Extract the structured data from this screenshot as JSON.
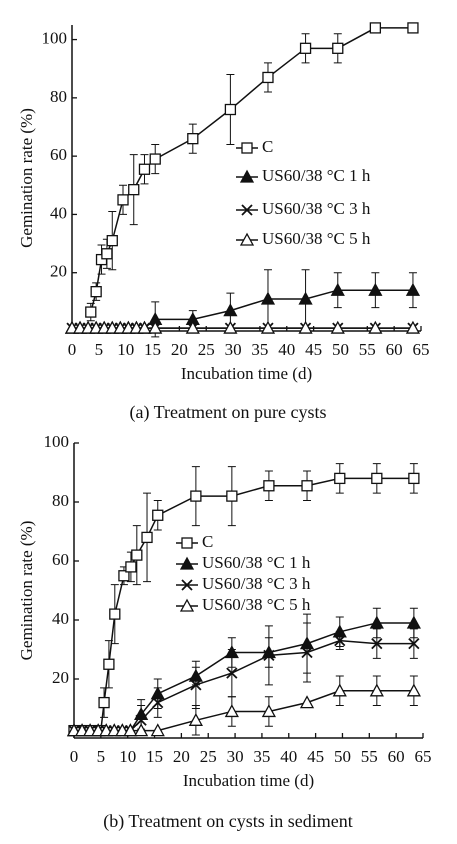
{
  "chart_data": [
    {
      "type": "line",
      "caption": "(a) Treatment on pure cysts",
      "x_label": "Incubation time (d)",
      "y_label": "Gemination rate (%)",
      "xlim": [
        0,
        65
      ],
      "xticks": [
        0,
        5,
        10,
        15,
        20,
        25,
        30,
        35,
        40,
        45,
        50,
        55,
        60,
        65
      ],
      "ylim": [
        0,
        105
      ],
      "yticks": [
        20,
        40,
        60,
        80,
        100
      ],
      "series": [
        {
          "name": "C",
          "color": "#111111",
          "marker": "square-open",
          "x": [
            3.5,
            4.5,
            5.5,
            6.5,
            7.5,
            9.5,
            11.5,
            13.5,
            15.5,
            22.5,
            29.5,
            36.5,
            43.5,
            49.5,
            56.5,
            63.5
          ],
          "values": [
            6.5,
            13.5,
            24.5,
            26.5,
            31,
            45,
            48.5,
            55.5,
            59,
            66,
            76,
            87,
            97,
            97,
            104,
            104
          ],
          "errors": [
            3,
            3,
            5,
            5,
            10,
            5,
            12,
            5,
            5,
            5,
            12,
            5,
            5,
            5,
            null,
            null
          ]
        },
        {
          "name": "US60/38 °C 1 h",
          "color": "#111111",
          "marker": "triangle-filled",
          "x": [
            0,
            1.5,
            3,
            4.5,
            6,
            7.5,
            9,
            10.5,
            12,
            13.5,
            15.5,
            22.5,
            29.5,
            36.5,
            43.5,
            49.5,
            56.5,
            63.5
          ],
          "values": [
            1,
            1,
            1,
            1,
            1,
            1,
            1,
            1,
            1,
            1,
            4,
            4,
            7,
            11,
            11,
            14,
            14,
            14
          ],
          "errors": [
            null,
            null,
            null,
            null,
            null,
            null,
            null,
            null,
            null,
            null,
            6,
            3,
            6,
            10,
            10,
            6,
            6,
            6
          ]
        },
        {
          "name": "US60/38 °C 3 h",
          "color": "#111111",
          "marker": "x",
          "x": [
            0,
            1.5,
            3,
            4.5,
            6,
            7.5,
            9,
            10.5,
            12,
            13.5,
            15.5,
            22.5,
            29.5,
            36.5,
            43.5,
            49.5,
            56.5,
            63.5
          ],
          "values": [
            1,
            1,
            1,
            1,
            1,
            1,
            1,
            1,
            1,
            1,
            1,
            1,
            1,
            1,
            1,
            1,
            1,
            1
          ],
          "errors": [
            null,
            null,
            null,
            null,
            null,
            null,
            null,
            null,
            null,
            null,
            null,
            null,
            null,
            null,
            null,
            null,
            null,
            null
          ]
        },
        {
          "name": "US60/38 °C 5 h",
          "color": "#111111",
          "marker": "triangle-open",
          "x": [
            0,
            1.5,
            3,
            4.5,
            6,
            7.5,
            9,
            10.5,
            12,
            13.5,
            15.5,
            22.5,
            29.5,
            36.5,
            43.5,
            49.5,
            56.5,
            63.5
          ],
          "values": [
            1,
            1,
            1,
            1,
            1,
            1,
            1,
            1,
            1,
            1,
            1,
            1,
            1,
            1,
            1,
            1,
            1,
            1
          ],
          "errors": [
            null,
            null,
            null,
            null,
            null,
            null,
            null,
            null,
            null,
            null,
            null,
            null,
            null,
            null,
            null,
            null,
            null,
            null
          ]
        }
      ]
    },
    {
      "type": "line",
      "caption": "(b) Treatment on cysts in sediment",
      "x_label": "Incubation time (d)",
      "y_label": "Gemination rate (%)",
      "xlim": [
        0,
        65
      ],
      "xticks": [
        0,
        5,
        10,
        15,
        20,
        25,
        30,
        35,
        40,
        45,
        50,
        55,
        60,
        65
      ],
      "ylim": [
        0,
        100
      ],
      "yticks": [
        20,
        40,
        60,
        80,
        100
      ],
      "series": [
        {
          "name": "C",
          "color": "#111111",
          "marker": "square-open",
          "x": [
            0,
            1,
            2,
            3,
            4,
            5,
            5.6,
            6.5,
            7.6,
            9.3,
            10.6,
            11.7,
            13.6,
            15.6,
            22.7,
            29.4,
            36.3,
            43.4,
            49.5,
            56.4,
            63.3
          ],
          "values": [
            2.5,
            2.5,
            2.5,
            2.5,
            2.5,
            2.5,
            12,
            25,
            42,
            55,
            58,
            62,
            68,
            75.5,
            82,
            82,
            85.5,
            85.5,
            88,
            88,
            88
          ],
          "errors": [
            null,
            null,
            null,
            null,
            null,
            null,
            5,
            8,
            10,
            3,
            5,
            10,
            15,
            5,
            10,
            10,
            5,
            5,
            5,
            5,
            5
          ]
        },
        {
          "name": "US60/38 °C 1 h",
          "color": "#111111",
          "marker": "triangle-filled",
          "x": [
            0,
            1.5,
            3,
            4.5,
            6,
            7.5,
            9,
            10.5,
            12.5,
            15.6,
            22.7,
            29.4,
            36.3,
            43.4,
            49.5,
            56.4,
            63.3
          ],
          "values": [
            2.5,
            2.5,
            2.5,
            2.5,
            2.5,
            2.5,
            2.5,
            2.5,
            8,
            15,
            21,
            29,
            29,
            32,
            36,
            39,
            39
          ],
          "errors": [
            null,
            null,
            null,
            null,
            null,
            null,
            null,
            null,
            5,
            5,
            3,
            5,
            5,
            10,
            5,
            5,
            5
          ]
        },
        {
          "name": "US60/38 °C 3 h",
          "color": "#111111",
          "marker": "x",
          "x": [
            0,
            1.5,
            3,
            4.5,
            6,
            7.5,
            9,
            10.5,
            12.5,
            15.6,
            22.7,
            29.4,
            36.3,
            43.4,
            49.5,
            56.4,
            63.3
          ],
          "values": [
            2.5,
            2.5,
            2.5,
            2.5,
            2.5,
            2.5,
            2.5,
            2.5,
            6,
            12,
            18,
            22,
            28,
            29,
            33,
            32,
            32
          ],
          "errors": [
            null,
            null,
            null,
            null,
            null,
            null,
            null,
            null,
            5,
            5,
            8,
            8,
            10,
            10,
            3,
            5,
            5
          ]
        },
        {
          "name": "US60/38 °C 5 h",
          "color": "#111111",
          "marker": "triangle-open",
          "x": [
            0,
            1.5,
            3,
            4.5,
            6,
            7.5,
            9,
            10.5,
            12.5,
            15.6,
            22.7,
            29.4,
            36.3,
            43.4,
            49.5,
            56.4,
            63.3
          ],
          "values": [
            2.5,
            2.5,
            2.5,
            2.5,
            2.5,
            2.5,
            2.5,
            2.5,
            2.5,
            2.5,
            6,
            9,
            9,
            12,
            16,
            16,
            16
          ],
          "errors": [
            null,
            null,
            null,
            null,
            null,
            null,
            null,
            null,
            null,
            null,
            5,
            5,
            5,
            null,
            5,
            5,
            5
          ]
        }
      ]
    }
  ]
}
